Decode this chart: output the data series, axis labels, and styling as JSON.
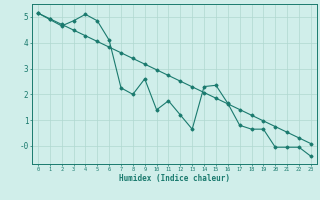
{
  "title": "",
  "xlabel": "Humidex (Indice chaleur)",
  "ylabel": "",
  "xlim": [
    -0.5,
    23.5
  ],
  "ylim": [
    -0.7,
    5.5
  ],
  "xticks": [
    0,
    1,
    2,
    3,
    4,
    5,
    6,
    7,
    8,
    9,
    10,
    11,
    12,
    13,
    14,
    15,
    16,
    17,
    18,
    19,
    20,
    21,
    22,
    23
  ],
  "yticks": [
    0,
    1,
    2,
    3,
    4,
    5
  ],
  "ytick_labels": [
    "-0",
    "1",
    "2",
    "3",
    "4",
    "5"
  ],
  "background_color": "#d0eeea",
  "grid_color": "#b0d8d0",
  "line_color": "#1a7a6e",
  "line1_x": [
    0,
    1,
    2,
    3,
    4,
    5,
    6,
    7,
    8,
    9,
    10,
    11,
    12,
    13,
    14,
    15,
    16,
    17,
    18,
    19,
    20,
    21,
    22,
    23
  ],
  "line1_y": [
    5.15,
    4.9,
    4.65,
    4.85,
    5.1,
    4.85,
    4.1,
    2.25,
    2.0,
    2.6,
    1.4,
    1.75,
    1.2,
    0.65,
    2.3,
    2.35,
    1.65,
    0.8,
    0.65,
    0.65,
    -0.05,
    -0.05,
    -0.05,
    -0.4
  ],
  "line2_x": [
    0,
    1,
    2,
    3,
    4,
    5,
    6,
    7,
    8,
    9,
    10,
    11,
    12,
    13,
    14,
    15,
    16,
    17,
    18,
    19,
    20,
    21,
    22,
    23
  ],
  "line2_y": [
    5.15,
    4.93,
    4.71,
    4.49,
    4.27,
    4.05,
    3.83,
    3.61,
    3.39,
    3.17,
    2.95,
    2.73,
    2.51,
    2.29,
    2.07,
    1.85,
    1.63,
    1.41,
    1.19,
    0.97,
    0.75,
    0.53,
    0.31,
    0.09
  ]
}
